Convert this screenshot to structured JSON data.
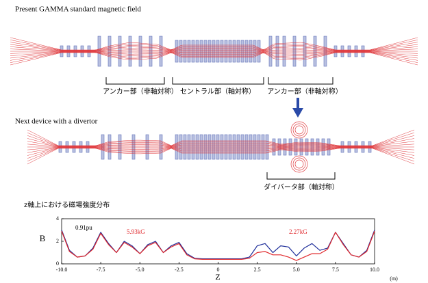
{
  "diagrams": [
    {
      "title": "Present GAMMA standard magnetic field",
      "labels": [
        "アンカー部（非軸対称）",
        "セントラル部（軸対称）",
        "アンカー部（非軸対称）"
      ]
    },
    {
      "title": "Next device with a divertor",
      "labels": [
        "ダイバータ部（軸対称）"
      ]
    }
  ],
  "chart_data": {
    "type": "line",
    "title": "z軸上における磁場強度分布",
    "xlabel": "Z",
    "ylabel": "B",
    "x_unit_label": "(m)",
    "annotations": [
      "0.91pu",
      "5.93kG",
      "2.27kG"
    ],
    "x": [
      -10,
      -9.5,
      -9,
      -8.5,
      -8,
      -7.5,
      -7,
      -6.5,
      -6,
      -5.5,
      -5,
      -4.5,
      -4,
      -3.5,
      -3,
      -2.5,
      -2,
      -1.5,
      -1,
      -0.5,
      0,
      0.5,
      1,
      1.5,
      2,
      2.5,
      3,
      3.5,
      4,
      4.5,
      5,
      5.5,
      6,
      6.5,
      7,
      7.5,
      8,
      8.5,
      9,
      9.5,
      10
    ],
    "series": [
      {
        "color": "#1f2f9a",
        "values": [
          3.0,
          1.2,
          0.6,
          0.7,
          1.4,
          2.8,
          1.8,
          1.0,
          2.0,
          1.6,
          0.9,
          1.7,
          2.0,
          1.0,
          1.6,
          1.9,
          0.9,
          0.5,
          0.45,
          0.45,
          0.45,
          0.45,
          0.45,
          0.45,
          0.6,
          1.6,
          1.8,
          1.0,
          1.6,
          1.5,
          0.7,
          1.4,
          1.8,
          1.2,
          1.4,
          2.8,
          1.8,
          0.8,
          0.6,
          1.2,
          3.0
        ]
      },
      {
        "color": "#e0282c",
        "values": [
          2.9,
          1.1,
          0.6,
          0.7,
          1.3,
          2.7,
          1.7,
          1.0,
          1.9,
          1.5,
          0.9,
          1.6,
          1.9,
          1.0,
          1.5,
          1.8,
          0.8,
          0.45,
          0.4,
          0.4,
          0.4,
          0.4,
          0.4,
          0.4,
          0.5,
          1.0,
          1.1,
          0.8,
          0.8,
          0.6,
          0.3,
          0.6,
          0.9,
          0.9,
          1.3,
          2.8,
          1.7,
          0.8,
          0.6,
          1.1,
          2.9
        ]
      }
    ],
    "xlim": [
      -10,
      10
    ],
    "ylim": [
      0,
      4
    ],
    "xticks": [
      {
        "value": -10,
        "label": "-10.0"
      },
      {
        "value": -7.5,
        "label": "-7.5"
      },
      {
        "value": -5,
        "label": "-5.0"
      },
      {
        "value": -2.5,
        "label": "-2.5"
      },
      {
        "value": 0,
        "label": "0"
      },
      {
        "value": 2.5,
        "label": "2.5"
      },
      {
        "value": 5,
        "label": "5.0"
      },
      {
        "value": 7.5,
        "label": "7.5"
      },
      {
        "value": 10,
        "label": "10.0"
      }
    ],
    "yticks": [
      0,
      2,
      4
    ]
  }
}
